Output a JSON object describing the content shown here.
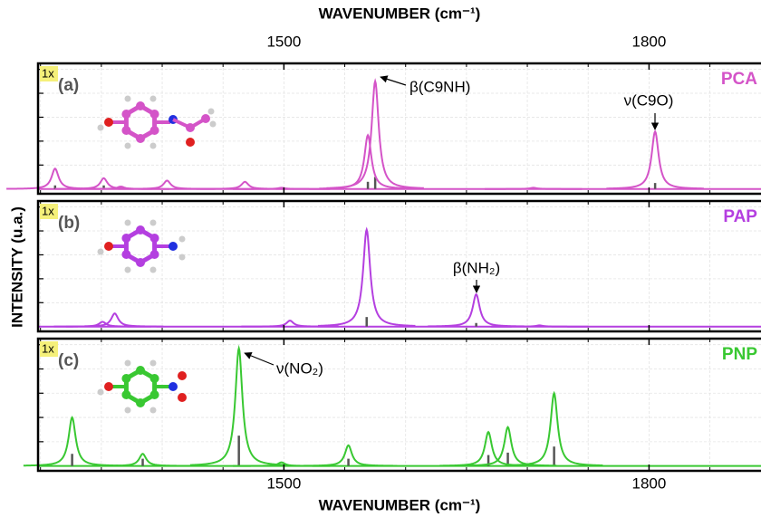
{
  "chart_data": [
    {
      "type": "spectrum",
      "panel": "(a)",
      "scale": "1x",
      "name": "PCA",
      "color": "#d454c8",
      "x_label": "WAVENUMBER (cm⁻¹)",
      "xlim": [
        1298,
        1892
      ],
      "xticks": [
        1500,
        1800
      ],
      "xminor": [
        1300,
        1350,
        1400,
        1450,
        1550,
        1600,
        1650,
        1700,
        1750,
        1850
      ],
      "ylim": [
        -0.04,
        1.05
      ],
      "yticks": [
        0.2,
        0.4,
        0.6,
        0.8,
        1.0
      ],
      "grid": true,
      "peak_width": 3.5,
      "peaks": {
        "x": [
          1312,
          1352,
          1366,
          1404,
          1468,
          1498,
          1569,
          1575,
          1705,
          1805
        ],
        "values": [
          0.17,
          0.09,
          0.02,
          0.07,
          0.06,
          0.01,
          0.45,
          0.9,
          0.01,
          0.48
        ]
      },
      "sticks": {
        "x": [
          1312,
          1352,
          1569,
          1575,
          1805
        ],
        "values": [
          0.03,
          0.03,
          0.06,
          0.1,
          0.05
        ]
      },
      "annotations": [
        "β(C9NH)",
        "ν(C9O)"
      ]
    },
    {
      "type": "spectrum",
      "panel": "(b)",
      "scale": "1x",
      "name": "PAP",
      "color": "#b43fe0",
      "y_label": "INTENSITY (u.a.)",
      "xlim": [
        1298,
        1892
      ],
      "xticks": [
        1500,
        1800
      ],
      "ylim": [
        -0.04,
        1.05
      ],
      "yticks": [
        0.2,
        0.4,
        0.6,
        0.8,
        1.0
      ],
      "grid": true,
      "peak_width": 3.5,
      "peaks": {
        "x": [
          1351,
          1361,
          1505,
          1568,
          1658,
          1710
        ],
        "values": [
          0.04,
          0.11,
          0.05,
          0.81,
          0.27,
          0.01
        ]
      },
      "sticks": {
        "x": [
          1568,
          1658
        ],
        "values": [
          0.08,
          0.03
        ]
      },
      "annotations": [
        "β(NH₂)"
      ]
    },
    {
      "type": "spectrum",
      "panel": "(c)",
      "scale": "1x",
      "name": "PNP",
      "color": "#39c832",
      "x_label": "WAVENUMBER (cm⁻¹)",
      "xlim": [
        1298,
        1892
      ],
      "xticks": [
        1500,
        1800
      ],
      "ylim": [
        -0.04,
        1.05
      ],
      "yticks": [
        0.2,
        0.4,
        0.6,
        0.8,
        1.0
      ],
      "grid": true,
      "peak_width": 3.5,
      "peaks": {
        "x": [
          1326,
          1384,
          1463,
          1498,
          1553,
          1668,
          1684,
          1722
        ],
        "values": [
          0.4,
          0.1,
          0.97,
          0.03,
          0.17,
          0.28,
          0.32,
          0.6
        ]
      },
      "sticks": {
        "x": [
          1326,
          1384,
          1463,
          1553,
          1668,
          1684,
          1722
        ],
        "values": [
          0.1,
          0.06,
          0.25,
          0.06,
          0.09,
          0.11,
          0.16
        ]
      },
      "annotations": [
        "ν(NO₂)"
      ]
    }
  ]
}
